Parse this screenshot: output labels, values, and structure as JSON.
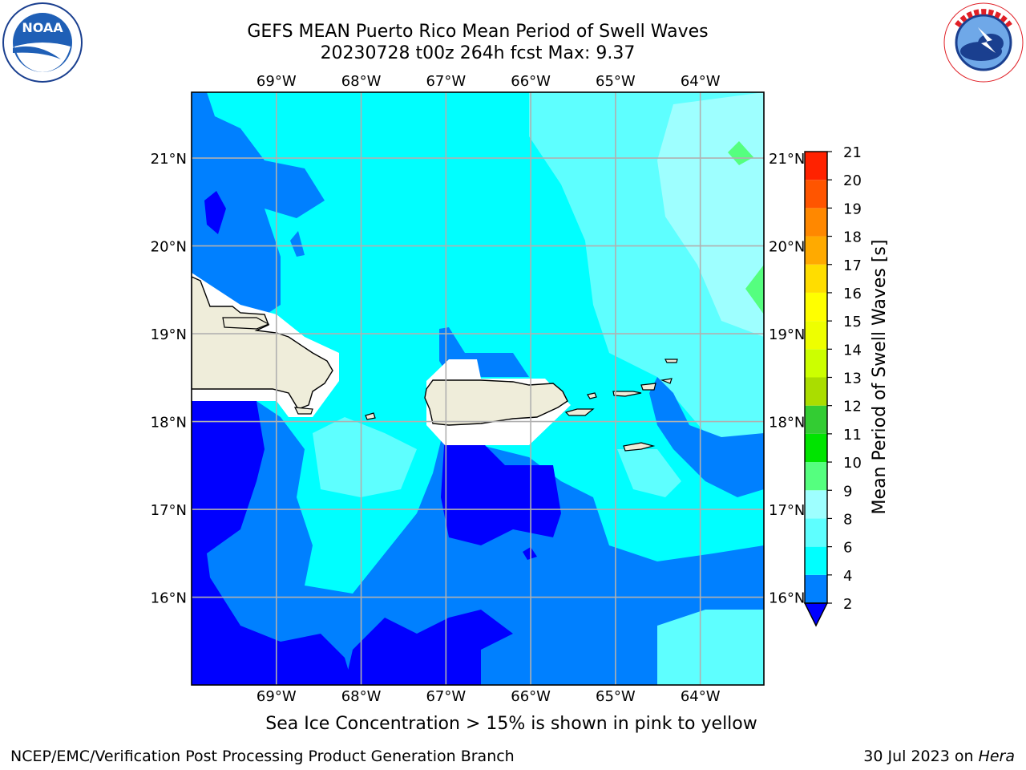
{
  "title": {
    "line1": "GEFS MEAN Puerto Rico Mean Period of Swell Waves",
    "line2": "20230728 t00z 264h fcst   Max: 9.37"
  },
  "logos": {
    "noaa": {
      "icon": "noaa-logo-icon",
      "text": "NOAA",
      "ring_text": "NATIONAL OCEANIC AND ATMOSPHERIC ADMINISTRATION · U.S. DEPARTMENT OF COMMERCE"
    },
    "nws": {
      "icon": "nws-logo-icon",
      "ring_text": "NATIONAL WEATHER SERVICE"
    }
  },
  "map": {
    "lon_ticks": [
      "69°W",
      "68°W",
      "67°W",
      "66°W",
      "65°W",
      "64°W"
    ],
    "lat_ticks": [
      "21°N",
      "20°N",
      "19°N",
      "18°N",
      "17°N",
      "16°N"
    ],
    "lon_values": [
      -69,
      -68,
      -67,
      -66,
      -65,
      -64
    ],
    "lat_values": [
      21,
      20,
      19,
      18,
      17,
      16
    ],
    "extent": {
      "lon_min": -70.0,
      "lon_max": -63.25,
      "lat_min": 15.0,
      "lat_max": 21.75
    },
    "grid": true,
    "land_color": "#efedda",
    "ocean_colors": {
      "lt2": "#0000ff",
      "2-4": "#0080ff",
      "4-6": "#00ffff",
      "6-8": "#5effff",
      "8-9": "#9effff"
    }
  },
  "colorbar": {
    "label": "Mean Period of Swell Waves [s]",
    "ticks": [
      "2",
      "4",
      "6",
      "8",
      "9",
      "10",
      "11",
      "12",
      "13",
      "14",
      "15",
      "16",
      "17",
      "18",
      "19",
      "20",
      "21"
    ],
    "colors": [
      "#0080ff",
      "#00ffff",
      "#5effff",
      "#9effff",
      "#55ff7f",
      "#00e400",
      "#33cc33",
      "#aadd00",
      "#ccff00",
      "#eeff00",
      "#ffff00",
      "#ffdd00",
      "#ffaa00",
      "#ff8800",
      "#ff5500",
      "#ff2200"
    ],
    "under_color": "#0000ff",
    "extend": "min"
  },
  "ice_note": "Sea Ice Concentration > 15% is shown in pink to yellow",
  "footer": {
    "branch": "NCEP/EMC/Verification Post Processing Product Generation Branch",
    "date_prefix": "30 Jul 2023 on ",
    "machine": "Hera"
  }
}
